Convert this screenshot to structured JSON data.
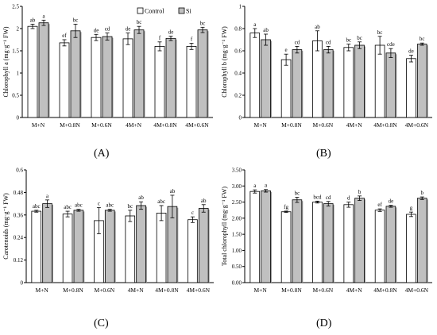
{
  "legend": {
    "control": "Control",
    "si": "Si"
  },
  "colors": {
    "control": "#ffffff",
    "si": "#c0c0c0",
    "axis": "#000000",
    "shadow": "#9a9a9a"
  },
  "panel_labels": [
    "(A)",
    "(B)",
    "(C)",
    "(D)"
  ],
  "chart_data": [
    {
      "type": "bar",
      "categories": [
        "M+N",
        "M+0.8N",
        "M+0.6N",
        "4M+N",
        "4M+0.8N",
        "4M+0.6N"
      ],
      "ylabel": "Chlorophyll a (mg·g⁻¹ FW)",
      "ylim": [
        0,
        2.5
      ],
      "yticks": [
        "0",
        "0.5",
        "1",
        "1.5",
        "2",
        "2.5"
      ],
      "legend_position": "top-right",
      "series": [
        {
          "name": "Control",
          "values": [
            2.05,
            1.68,
            1.8,
            1.77,
            1.6,
            1.6
          ],
          "errors": [
            0.05,
            0.07,
            0.07,
            0.13,
            0.1,
            0.07
          ],
          "letters": [
            "ab",
            "ef",
            "de",
            "de",
            "f",
            "f"
          ]
        },
        {
          "name": "Si",
          "values": [
            2.13,
            1.95,
            1.82,
            1.97,
            1.78,
            1.97
          ],
          "errors": [
            0.06,
            0.15,
            0.08,
            0.08,
            0.05,
            0.06
          ],
          "letters": [
            "a",
            "bc",
            "cd",
            "bc",
            "de",
            "bc"
          ]
        }
      ]
    },
    {
      "type": "bar",
      "categories": [
        "M+N",
        "M+0.8N",
        "M+0.6N",
        "4M+N",
        "4M+0.8N",
        "4M+0.6N"
      ],
      "ylabel": "Chlorophyll b (mg·g⁻¹ FW)",
      "ylim": [
        0,
        1
      ],
      "yticks": [
        "0",
        "0.2",
        "0.4",
        "0.6",
        "0.8",
        "1"
      ],
      "series": [
        {
          "name": "Control",
          "values": [
            0.76,
            0.52,
            0.69,
            0.63,
            0.65,
            0.53
          ],
          "errors": [
            0.04,
            0.05,
            0.09,
            0.03,
            0.08,
            0.03
          ],
          "letters": [
            "a",
            "e",
            "ab",
            "bc",
            "bc",
            "de"
          ]
        },
        {
          "name": "Si",
          "values": [
            0.7,
            0.61,
            0.61,
            0.65,
            0.58,
            0.66
          ],
          "errors": [
            0.05,
            0.03,
            0.03,
            0.03,
            0.04,
            0.01
          ],
          "letters": [
            "ab",
            "cd",
            "cd",
            "bc",
            "cde",
            "bc"
          ]
        }
      ]
    },
    {
      "type": "bar",
      "categories": [
        "M+N",
        "M+0.8N",
        "M+0.6N",
        "4M+N",
        "4M+0.8N",
        "4M+0.6N"
      ],
      "ylabel": "Carotenoids (mg·g⁻¹ FW)",
      "ylim": [
        0,
        0.6
      ],
      "yticks": [
        "0",
        "0.12",
        "0.24",
        "0.36",
        "0.48",
        "0.6"
      ],
      "series": [
        {
          "name": "Control",
          "values": [
            0.38,
            0.365,
            0.33,
            0.355,
            0.37,
            0.335
          ],
          "errors": [
            0.005,
            0.015,
            0.07,
            0.03,
            0.04,
            0.015
          ],
          "letters": [
            "abc",
            "abc",
            "c",
            "bc",
            "abc",
            "c"
          ]
        },
        {
          "name": "Si",
          "values": [
            0.42,
            0.385,
            0.385,
            0.41,
            0.405,
            0.395
          ],
          "errors": [
            0.02,
            0.005,
            0.005,
            0.02,
            0.06,
            0.02
          ],
          "letters": [
            "a",
            "abc",
            "abc",
            "ab",
            "ab",
            "ab"
          ]
        }
      ]
    },
    {
      "type": "bar",
      "categories": [
        "M+N",
        "M+0.8N",
        "M+0.6N",
        "4M+N",
        "4M+0.8N",
        "4M+0.6N"
      ],
      "ylabel": "Total chlorophyll (mg·g⁻¹ FW)",
      "ylim": [
        0,
        3.5
      ],
      "yticks": [
        "0.00",
        "0.50",
        "1.00",
        "1.50",
        "2.00",
        "2.50",
        "3.00",
        "3.50"
      ],
      "series": [
        {
          "name": "Control",
          "values": [
            2.83,
            2.2,
            2.5,
            2.42,
            2.25,
            2.12
          ],
          "errors": [
            0.05,
            0.02,
            0.03,
            0.08,
            0.04,
            0.07
          ],
          "letters": [
            "a",
            "fg",
            "bcd",
            "d",
            "ef",
            "g"
          ]
        },
        {
          "name": "Si",
          "values": [
            2.85,
            2.57,
            2.45,
            2.62,
            2.37,
            2.62
          ],
          "errors": [
            0.04,
            0.08,
            0.07,
            0.07,
            0.03,
            0.04
          ],
          "letters": [
            "a",
            "bc",
            "cd",
            "b",
            "de",
            "b"
          ]
        }
      ]
    }
  ]
}
